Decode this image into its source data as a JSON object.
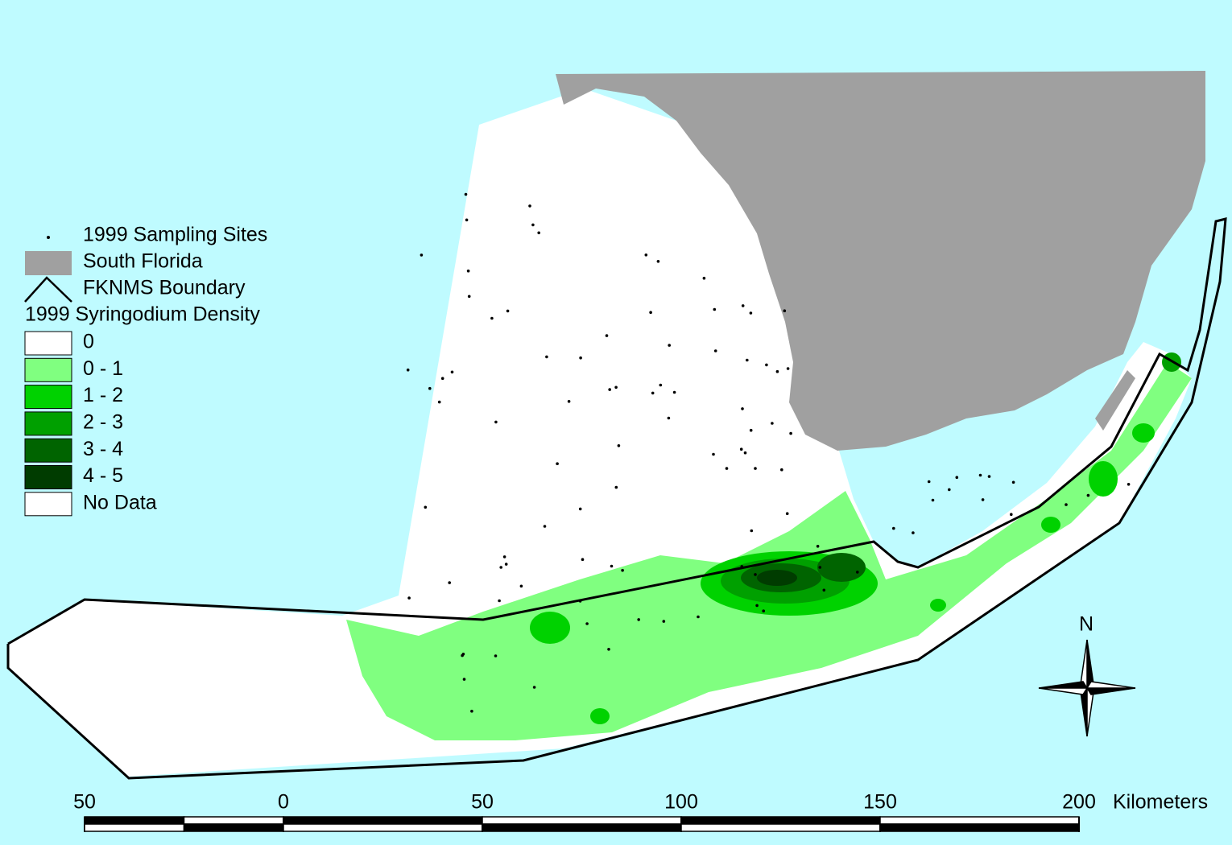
{
  "legend": {
    "symbols": [
      "1999 Sampling Sites",
      "South Florida",
      "FKNMS Boundary"
    ],
    "density_title": "1999 Syringodium Density",
    "classes": [
      {
        "label": "0",
        "color": "#ffffff"
      },
      {
        "label": "0 - 1",
        "color": "#80ff80"
      },
      {
        "label": "1 - 2",
        "color": "#00d200"
      },
      {
        "label": "2 - 3",
        "color": "#00a000"
      },
      {
        "label": "3 - 4",
        "color": "#006400"
      },
      {
        "label": "4 - 5",
        "color": "#003c00"
      },
      {
        "label": "No Data",
        "color": "#ffffff"
      }
    ]
  },
  "north_label": "N",
  "scale_bar": {
    "unit": "Kilometers",
    "range": [
      -50,
      200
    ],
    "ticks": [
      {
        "value": -50,
        "label": "50"
      },
      0,
      50,
      100,
      150,
      200
    ]
  }
}
